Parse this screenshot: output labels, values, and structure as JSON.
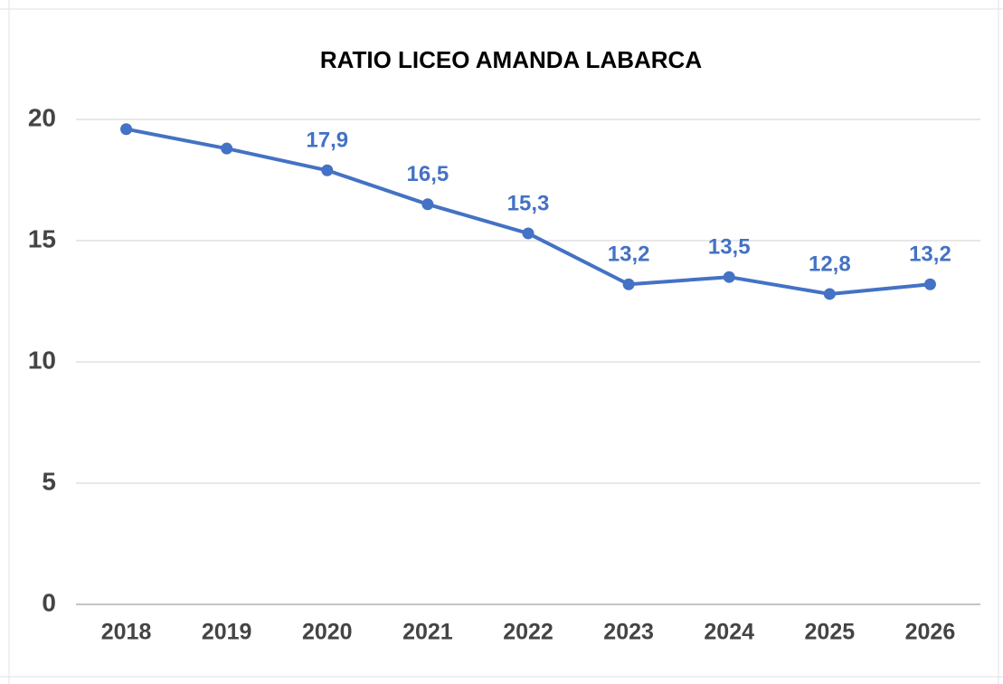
{
  "chart_data": {
    "type": "line",
    "title": "RATIO LICEO AMANDA LABARCA",
    "categories": [
      "2018",
      "2019",
      "2020",
      "2021",
      "2022",
      "2023",
      "2024",
      "2025",
      "2026"
    ],
    "values": [
      19.6,
      18.8,
      17.9,
      16.5,
      15.3,
      13.2,
      13.5,
      12.8,
      13.2
    ],
    "value_labels": [
      null,
      null,
      "17,9",
      "16,5",
      "15,3",
      "13,2",
      "13,5",
      "12,8",
      "13,2"
    ],
    "color": "#4472c4",
    "ylim": [
      0,
      20
    ],
    "yticks": [
      0,
      5,
      10,
      15,
      20
    ],
    "grid": true
  }
}
